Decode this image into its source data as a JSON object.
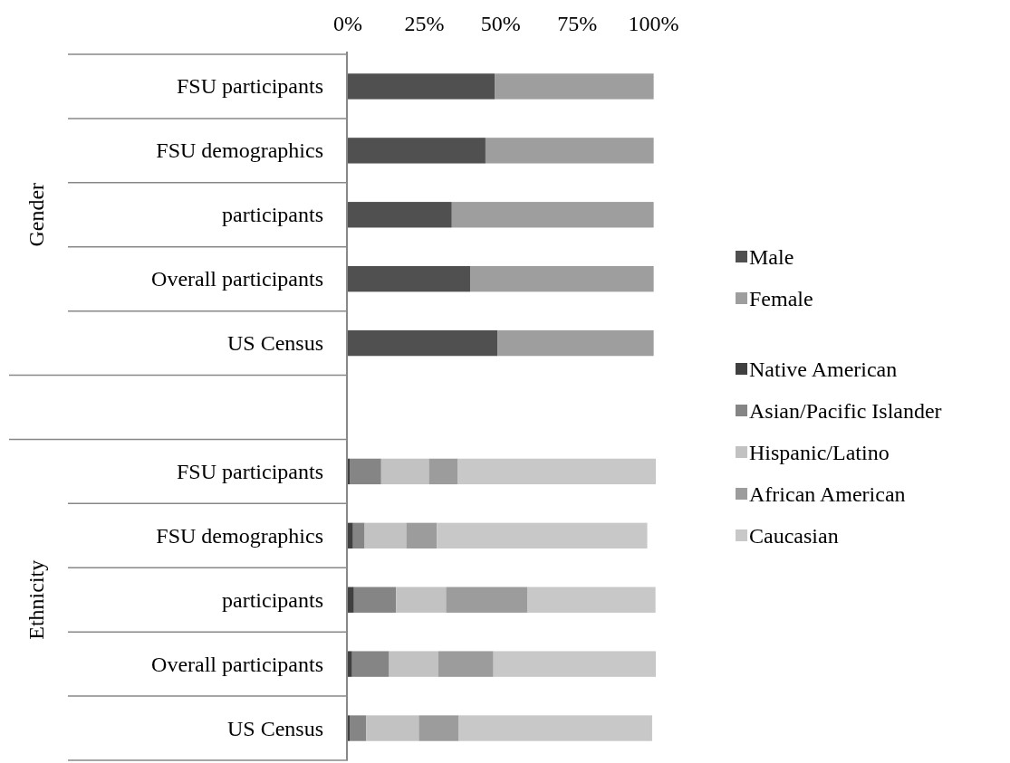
{
  "chart_data": {
    "type": "bar",
    "orientation": "horizontal",
    "stacked": true,
    "categories": [
      "FSU participants",
      "FSU demographics",
      "participants",
      "Overall participants",
      "US Census",
      null,
      "FSU participants",
      "FSU demographics",
      "participants",
      "Overall participants",
      "US Census"
    ],
    "series": [
      {
        "name": "Male",
        "color": "#505050",
        "values": [
          48,
          45,
          34,
          40,
          49,
          null,
          null,
          null,
          null,
          null,
          null
        ]
      },
      {
        "name": "Female",
        "color": "#9e9e9e",
        "values": [
          52,
          55,
          66,
          60,
          51,
          null,
          null,
          null,
          null,
          null,
          null
        ]
      },
      {
        "name": "Native American",
        "color": "#404040",
        "values": [
          null,
          null,
          null,
          null,
          null,
          null,
          0.6,
          1.7,
          2.0,
          1.4,
          0.6
        ]
      },
      {
        "name": "Asian/Pacific Islander",
        "color": "#858585",
        "values": [
          null,
          null,
          null,
          null,
          null,
          null,
          10.3,
          3.8,
          13.8,
          12.1,
          5.4
        ]
      },
      {
        "name": "Hispanic/Latino",
        "color": "#c2c2c2",
        "values": [
          null,
          null,
          null,
          null,
          null,
          null,
          15.6,
          13.6,
          16.3,
          16.0,
          17.2
        ]
      },
      {
        "name": "African American",
        "color": "#9c9c9c",
        "values": [
          null,
          null,
          null,
          null,
          null,
          null,
          9.5,
          10.0,
          26.7,
          18.1,
          13.1
        ]
      },
      {
        "name": "Caucasian",
        "color": "#c8c8c8",
        "values": [
          null,
          null,
          null,
          null,
          null,
          null,
          64.7,
          68.8,
          41.8,
          53.1,
          63.2
        ]
      }
    ],
    "xlim": [
      0,
      101
    ],
    "xticks": [
      {
        "value": 0,
        "label": "0%"
      },
      {
        "value": 25,
        "label": "25%"
      },
      {
        "value": 50,
        "label": "50%"
      },
      {
        "value": 75,
        "label": "75%"
      },
      {
        "value": 100,
        "label": "100%"
      }
    ],
    "annotations": [
      "Gender",
      "Ethnicity"
    ],
    "legend": "right",
    "grid": false
  }
}
